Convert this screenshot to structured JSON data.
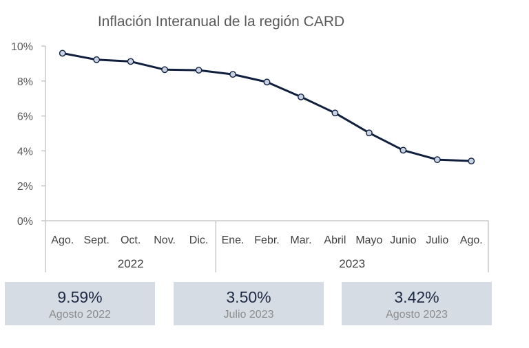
{
  "chart_data": {
    "type": "line",
    "title": "Inflación Interanual de la región CARD",
    "categories": [
      "Ago.",
      "Sept.",
      "Oct.",
      "Nov.",
      "Dic.",
      "Ene.",
      "Febr.",
      "Mar.",
      "Abril",
      "Mayo",
      "Junio",
      "Julio",
      "Ago."
    ],
    "groups": [
      {
        "label": "2022",
        "count": 5
      },
      {
        "label": "2023",
        "count": 8
      }
    ],
    "values": [
      9.59,
      9.22,
      9.12,
      8.65,
      8.62,
      8.38,
      7.94,
      7.09,
      6.17,
      5.03,
      4.04,
      3.5,
      3.42
    ],
    "yticks": [
      "0%",
      "2%",
      "4%",
      "6%",
      "8%",
      "10%"
    ],
    "ylim": [
      0,
      10
    ],
    "grid": false,
    "line_color": "#0f1f3d",
    "marker_fill": "#c9d3e3"
  },
  "cards": [
    {
      "value": "9.59%",
      "label": "Agosto 2022"
    },
    {
      "value": "3.50%",
      "label": "Julio 2023"
    },
    {
      "value": "3.42%",
      "label": "Agosto 2023"
    }
  ]
}
